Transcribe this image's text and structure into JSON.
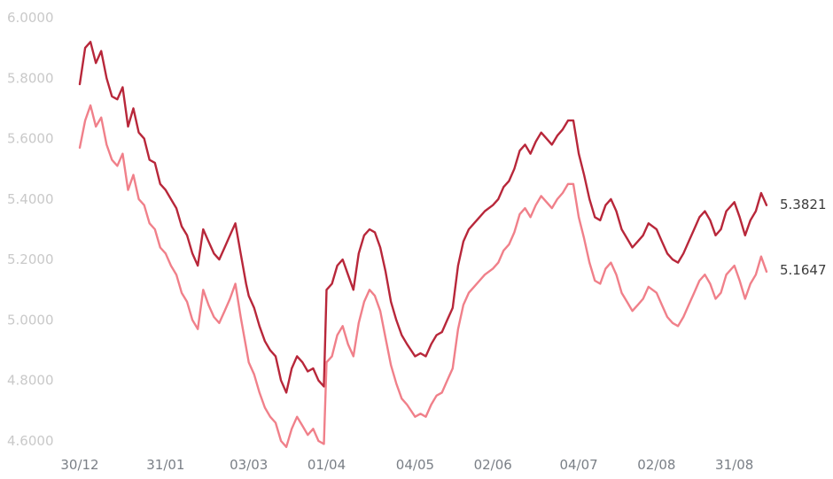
{
  "chart_data": {
    "type": "line",
    "ylim": [
      4.6,
      6.0
    ],
    "yticks": [
      "6.0000",
      "5.8000",
      "5.6000",
      "5.4000",
      "5.2000",
      "5.0000",
      "4.8000",
      "4.6000"
    ],
    "xtick_labels": [
      "30/12",
      "31/01",
      "03/03",
      "01/04",
      "04/05",
      "02/06",
      "04/07",
      "02/08",
      "31/08"
    ],
    "grid": false,
    "legend": "none",
    "series": [
      {
        "color": "#b8273a",
        "end_label": "5.3821",
        "x": [
          "30/12",
          "01/01",
          "03/01",
          "05/01",
          "07/01",
          "09/01",
          "11/01",
          "13/01",
          "15/01",
          "17/01",
          "19/01",
          "21/01",
          "23/01",
          "25/01",
          "27/01",
          "29/01",
          "31/01",
          "02/02",
          "04/02",
          "06/02",
          "08/02",
          "10/02",
          "12/02",
          "14/02",
          "16/02",
          "18/02",
          "20/02",
          "22/02",
          "24/02",
          "26/02",
          "28/02",
          "02/03",
          "03/03",
          "05/03",
          "07/03",
          "09/03",
          "11/03",
          "13/03",
          "15/03",
          "17/03",
          "19/03",
          "21/03",
          "23/03",
          "25/03",
          "27/03",
          "29/03",
          "31/03",
          "01/04",
          "03/04",
          "05/04",
          "07/04",
          "09/04",
          "11/04",
          "13/04",
          "15/04",
          "17/04",
          "19/04",
          "21/04",
          "23/04",
          "25/04",
          "27/04",
          "29/04",
          "01/05",
          "04/05",
          "06/05",
          "08/05",
          "10/05",
          "12/05",
          "14/05",
          "16/05",
          "18/05",
          "20/05",
          "22/05",
          "24/05",
          "26/05",
          "28/05",
          "30/05",
          "02/06",
          "04/06",
          "06/06",
          "08/06",
          "10/06",
          "12/06",
          "14/06",
          "16/06",
          "18/06",
          "20/06",
          "22/06",
          "24/06",
          "26/06",
          "28/06",
          "30/06",
          "02/07",
          "04/07",
          "06/07",
          "08/07",
          "10/07",
          "12/07",
          "14/07",
          "16/07",
          "18/07",
          "20/07",
          "22/07",
          "24/07",
          "26/07",
          "28/07",
          "30/07",
          "02/08",
          "04/08",
          "06/08",
          "08/08",
          "10/08",
          "12/08",
          "14/08",
          "16/08",
          "18/08",
          "20/08",
          "22/08",
          "24/08",
          "26/08",
          "28/08",
          "31/08",
          "02/09",
          "04/09",
          "06/09",
          "08/09",
          "10/09",
          "12/09"
        ],
        "values": [
          5.78,
          5.9,
          5.92,
          5.85,
          5.89,
          5.8,
          5.74,
          5.73,
          5.77,
          5.64,
          5.7,
          5.62,
          5.6,
          5.53,
          5.52,
          5.45,
          5.43,
          5.4,
          5.37,
          5.31,
          5.28,
          5.22,
          5.18,
          5.3,
          5.26,
          5.22,
          5.2,
          5.24,
          5.28,
          5.32,
          5.22,
          5.12,
          5.08,
          5.04,
          4.98,
          4.93,
          4.9,
          4.88,
          4.8,
          4.76,
          4.84,
          4.88,
          4.86,
          4.83,
          4.84,
          4.8,
          4.78,
          5.1,
          5.12,
          5.18,
          5.2,
          5.15,
          5.1,
          5.22,
          5.28,
          5.3,
          5.29,
          5.24,
          5.16,
          5.06,
          5.0,
          4.95,
          4.92,
          4.88,
          4.89,
          4.88,
          4.92,
          4.95,
          4.96,
          5.0,
          5.04,
          5.18,
          5.26,
          5.3,
          5.32,
          5.34,
          5.36,
          5.38,
          5.4,
          5.44,
          5.46,
          5.5,
          5.56,
          5.58,
          5.55,
          5.59,
          5.62,
          5.6,
          5.58,
          5.61,
          5.63,
          5.66,
          5.66,
          5.55,
          5.48,
          5.4,
          5.34,
          5.33,
          5.38,
          5.4,
          5.36,
          5.3,
          5.27,
          5.24,
          5.26,
          5.28,
          5.32,
          5.3,
          5.26,
          5.22,
          5.2,
          5.19,
          5.22,
          5.26,
          5.3,
          5.34,
          5.36,
          5.33,
          5.28,
          5.3,
          5.36,
          5.39,
          5.34,
          5.28,
          5.33,
          5.36,
          5.42,
          5.38
        ]
      },
      {
        "color": "#f0808a",
        "end_label": "5.1647",
        "x": [
          "30/12",
          "01/01",
          "03/01",
          "05/01",
          "07/01",
          "09/01",
          "11/01",
          "13/01",
          "15/01",
          "17/01",
          "19/01",
          "21/01",
          "23/01",
          "25/01",
          "27/01",
          "29/01",
          "31/01",
          "02/02",
          "04/02",
          "06/02",
          "08/02",
          "10/02",
          "12/02",
          "14/02",
          "16/02",
          "18/02",
          "20/02",
          "22/02",
          "24/02",
          "26/02",
          "28/02",
          "02/03",
          "03/03",
          "05/03",
          "07/03",
          "09/03",
          "11/03",
          "13/03",
          "15/03",
          "17/03",
          "19/03",
          "21/03",
          "23/03",
          "25/03",
          "27/03",
          "29/03",
          "31/03",
          "01/04",
          "03/04",
          "05/04",
          "07/04",
          "09/04",
          "11/04",
          "13/04",
          "15/04",
          "17/04",
          "19/04",
          "21/04",
          "23/04",
          "25/04",
          "27/04",
          "29/04",
          "01/05",
          "04/05",
          "06/05",
          "08/05",
          "10/05",
          "12/05",
          "14/05",
          "16/05",
          "18/05",
          "20/05",
          "22/05",
          "24/05",
          "26/05",
          "28/05",
          "30/05",
          "02/06",
          "04/06",
          "06/06",
          "08/06",
          "10/06",
          "12/06",
          "14/06",
          "16/06",
          "18/06",
          "20/06",
          "22/06",
          "24/06",
          "26/06",
          "28/06",
          "30/06",
          "02/07",
          "04/07",
          "06/07",
          "08/07",
          "10/07",
          "12/07",
          "14/07",
          "16/07",
          "18/07",
          "20/07",
          "22/07",
          "24/07",
          "26/07",
          "28/07",
          "30/07",
          "02/08",
          "04/08",
          "06/08",
          "08/08",
          "10/08",
          "12/08",
          "14/08",
          "16/08",
          "18/08",
          "20/08",
          "22/08",
          "24/08",
          "26/08",
          "28/08",
          "31/08",
          "02/09",
          "04/09",
          "06/09",
          "08/09",
          "10/09",
          "12/09"
        ],
        "values": [
          5.57,
          5.66,
          5.71,
          5.64,
          5.67,
          5.58,
          5.53,
          5.51,
          5.55,
          5.43,
          5.48,
          5.4,
          5.38,
          5.32,
          5.3,
          5.24,
          5.22,
          5.18,
          5.15,
          5.09,
          5.06,
          5.0,
          4.97,
          5.1,
          5.05,
          5.01,
          4.99,
          5.03,
          5.07,
          5.12,
          5.01,
          4.91,
          4.86,
          4.82,
          4.76,
          4.71,
          4.68,
          4.66,
          4.6,
          4.58,
          4.64,
          4.68,
          4.65,
          4.62,
          4.64,
          4.6,
          4.59,
          4.86,
          4.88,
          4.95,
          4.98,
          4.92,
          4.88,
          4.99,
          5.06,
          5.1,
          5.08,
          5.03,
          4.94,
          4.85,
          4.79,
          4.74,
          4.72,
          4.68,
          4.69,
          4.68,
          4.72,
          4.75,
          4.76,
          4.8,
          4.84,
          4.97,
          5.05,
          5.09,
          5.11,
          5.13,
          5.15,
          5.17,
          5.19,
          5.23,
          5.25,
          5.29,
          5.35,
          5.37,
          5.34,
          5.38,
          5.41,
          5.39,
          5.37,
          5.4,
          5.42,
          5.45,
          5.45,
          5.34,
          5.27,
          5.19,
          5.13,
          5.12,
          5.17,
          5.19,
          5.15,
          5.09,
          5.06,
          5.03,
          5.05,
          5.07,
          5.11,
          5.09,
          5.05,
          5.01,
          4.99,
          4.98,
          5.01,
          5.05,
          5.09,
          5.13,
          5.15,
          5.12,
          5.07,
          5.09,
          5.15,
          5.18,
          5.13,
          5.07,
          5.12,
          5.15,
          5.21,
          5.16
        ]
      }
    ]
  }
}
